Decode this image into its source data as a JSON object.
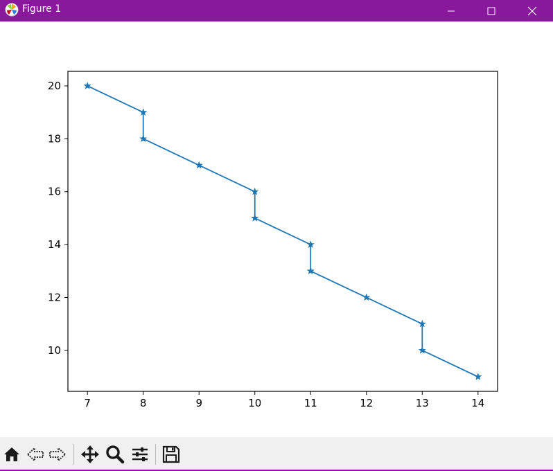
{
  "window": {
    "title": "Figure 1",
    "accent_color": "#8a189c",
    "controls": [
      "minimize-icon",
      "maximize-icon",
      "close-icon"
    ]
  },
  "toolbar": {
    "buttons": [
      "home-icon",
      "back-icon",
      "forward-icon",
      "pan-icon",
      "zoom-icon",
      "configure-subplots-icon",
      "save-icon"
    ]
  },
  "chart_data": {
    "type": "line",
    "title": "",
    "xlabel": "",
    "ylabel": "",
    "marker": "star",
    "line_color": "#1f77b4",
    "grid": false,
    "xlim": [
      6.65,
      14.35
    ],
    "ylim": [
      8.45,
      20.55
    ],
    "xticks": [
      7,
      8,
      9,
      10,
      11,
      12,
      13,
      14
    ],
    "yticks": [
      10,
      12,
      14,
      16,
      18,
      20
    ],
    "series": [
      {
        "x": [
          7,
          8,
          8,
          9,
          10,
          10,
          11,
          11,
          12,
          13,
          13,
          14
        ],
        "y": [
          20,
          19,
          18,
          17,
          16,
          15,
          14,
          13,
          12,
          11,
          10,
          9
        ]
      }
    ]
  }
}
